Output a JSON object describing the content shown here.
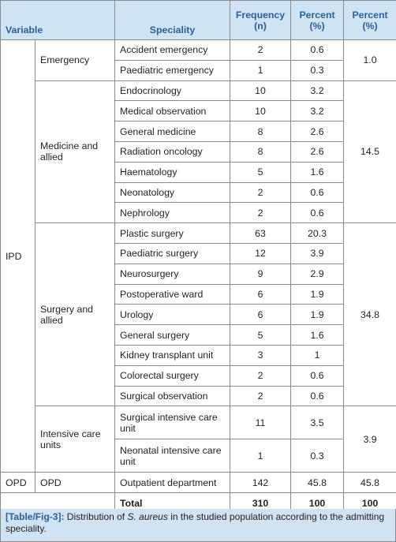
{
  "headers": {
    "variable": "Variable",
    "speciality": "Speciality",
    "frequency": "Frequency (n)",
    "percent": "Percent (%)",
    "percent_group": "Percent (%)"
  },
  "groups": {
    "ipd": "IPD",
    "opd": "OPD",
    "emergency": {
      "label": "Emergency",
      "percent": "1.0"
    },
    "medicine": {
      "label": "Medicine and allied",
      "percent": "14.5"
    },
    "surgery": {
      "label": "Surgery and allied",
      "percent": "34.8"
    },
    "icu": {
      "label": "Intensive care units",
      "percent": "3.9"
    },
    "opd_sub": {
      "label": "OPD",
      "percent": "45.8"
    }
  },
  "rows": [
    {
      "speciality": "Accident emergency",
      "n": "2",
      "pct": "0.6"
    },
    {
      "speciality": "Paediatric emergency",
      "n": "1",
      "pct": "0.3"
    },
    {
      "speciality": "Endocrinology",
      "n": "10",
      "pct": "3.2"
    },
    {
      "speciality": "Medical observation",
      "n": "10",
      "pct": "3.2"
    },
    {
      "speciality": "General medicine",
      "n": "8",
      "pct": "2.6"
    },
    {
      "speciality": "Radiation oncology",
      "n": "8",
      "pct": "2.6"
    },
    {
      "speciality": "Haematology",
      "n": "5",
      "pct": "1.6"
    },
    {
      "speciality": "Neonatology",
      "n": "2",
      "pct": "0.6"
    },
    {
      "speciality": "Nephrology",
      "n": "2",
      "pct": "0.6"
    },
    {
      "speciality": "Plastic surgery",
      "n": "63",
      "pct": "20.3"
    },
    {
      "speciality": "Paediatric surgery",
      "n": "12",
      "pct": "3.9"
    },
    {
      "speciality": "Neurosurgery",
      "n": "9",
      "pct": "2.9"
    },
    {
      "speciality": "Postoperative ward",
      "n": "6",
      "pct": "1.9"
    },
    {
      "speciality": "Urology",
      "n": "6",
      "pct": "1.9"
    },
    {
      "speciality": "General surgery",
      "n": "5",
      "pct": "1.6"
    },
    {
      "speciality": "Kidney transplant unit",
      "n": "3",
      "pct": "1"
    },
    {
      "speciality": "Colorectal surgery",
      "n": "2",
      "pct": "0.6"
    },
    {
      "speciality": "Surgical observation",
      "n": "2",
      "pct": "0.6"
    },
    {
      "speciality": "Surgical intensive care unit",
      "n": "11",
      "pct": "3.5"
    },
    {
      "speciality": "Neonatal intensive care unit",
      "n": "1",
      "pct": "0.3"
    },
    {
      "speciality": "Outpatient department",
      "n": "142",
      "pct": "45.8"
    }
  ],
  "total": {
    "label": "Total",
    "n": "310",
    "pct": "100",
    "pct_group": "100"
  },
  "caption": {
    "label": "[Table/Fig-3]:",
    "text_before": " Distribution of ",
    "organism": "S. aureus",
    "text_after": " in the studied population according to the admitting speciality."
  },
  "colors": {
    "header_bg": "#cfe3f3",
    "header_text": "#2e5f94",
    "border": "#8a8a8a"
  }
}
